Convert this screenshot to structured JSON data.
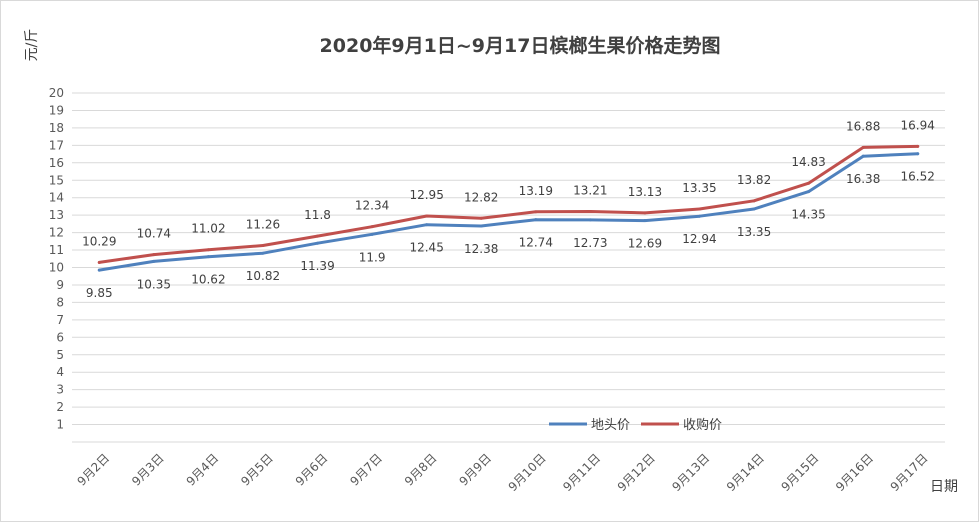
{
  "chart_data": {
    "type": "line",
    "title": "2020年9月1日~9月17日槟榔生果价格走势图",
    "xlabel": "日期",
    "ylabel": "元/斤",
    "ylim": [
      0,
      20
    ],
    "yticks": [
      1,
      2,
      3,
      4,
      5,
      6,
      7,
      8,
      9,
      10,
      11,
      12,
      13,
      14,
      15,
      16,
      17,
      18,
      19,
      20
    ],
    "grid": true,
    "legend_position": "bottom-right",
    "categories": [
      "9月2日",
      "9月3日",
      "9月4日",
      "9月5日",
      "9月6日",
      "9月7日",
      "9月8日",
      "9月9日",
      "9月10日",
      "9月11日",
      "9月12日",
      "9月13日",
      "9月14日",
      "9月15日",
      "9月16日",
      "9月17日"
    ],
    "series": [
      {
        "name": "地头价",
        "color": "#4F81BD",
        "label_position": "below",
        "values": [
          9.85,
          10.35,
          10.62,
          10.82,
          11.39,
          11.9,
          12.45,
          12.38,
          12.74,
          12.73,
          12.69,
          12.94,
          13.35,
          14.35,
          16.38,
          16.52
        ]
      },
      {
        "name": "收购价",
        "color": "#C0504D",
        "label_position": "above",
        "values": [
          10.29,
          10.74,
          11.02,
          11.26,
          11.8,
          12.34,
          12.95,
          12.82,
          13.19,
          13.21,
          13.13,
          13.35,
          13.82,
          14.83,
          16.88,
          16.94
        ]
      }
    ]
  }
}
